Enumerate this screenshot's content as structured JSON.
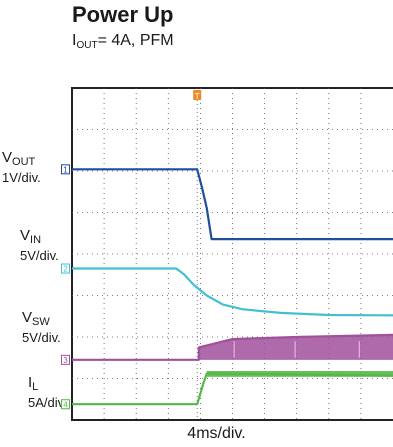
{
  "title": "Power Up",
  "subtitle": {
    "symbol": "I",
    "sub": "OUT",
    "rest": "= 4A, PFM"
  },
  "xlabel": "4ms/div.",
  "trigger_marker": "T",
  "chart_data": {
    "type": "line",
    "title": "Power Up",
    "subtitle": "IOUT= 4A, PFM",
    "xlabel": "4ms/div.",
    "grid": true,
    "x_divisions": 10,
    "y_divisions": 8,
    "trigger_at_division": 3.9,
    "series": [
      {
        "name": "VOUT",
        "sub": "OUT",
        "base": "V",
        "scale": "1V/div.",
        "channel": "1",
        "color": "#1f4e9c",
        "points": [
          [
            0,
            1.96
          ],
          [
            3.9,
            1.96
          ],
          [
            4.05,
            2.4
          ],
          [
            4.2,
            2.9
          ],
          [
            4.3,
            3.4
          ],
          [
            4.35,
            3.64
          ],
          [
            10,
            3.64
          ]
        ]
      },
      {
        "name": "VIN",
        "sub": "IN",
        "base": "V",
        "scale": "5V/div.",
        "channel": "2",
        "color": "#3fc1d0",
        "points": [
          [
            0,
            4.35
          ],
          [
            3.25,
            4.35
          ],
          [
            3.5,
            4.5
          ],
          [
            3.8,
            4.75
          ],
          [
            4.2,
            5.0
          ],
          [
            4.7,
            5.22
          ],
          [
            5.3,
            5.33
          ],
          [
            6.5,
            5.42
          ],
          [
            8,
            5.47
          ],
          [
            10,
            5.48
          ]
        ]
      },
      {
        "name": "VSW",
        "sub": "SW",
        "base": "V",
        "scale": "5V/div.",
        "channel": "3",
        "color": "#a0509c",
        "points": [
          [
            0,
            6.55
          ],
          [
            3.95,
            6.55
          ],
          [
            3.95,
            6.25
          ],
          [
            5,
            6.05
          ],
          [
            7,
            6.0
          ],
          [
            10,
            5.95
          ]
        ]
      },
      {
        "name": "IL",
        "sub": "L",
        "base": "I",
        "scale": "5A/div.",
        "channel": "4",
        "color": "#55b848",
        "points": [
          [
            0,
            7.62
          ],
          [
            3.9,
            7.62
          ],
          [
            4.1,
            7.1
          ],
          [
            4.2,
            6.88
          ],
          [
            10,
            6.93
          ]
        ]
      }
    ]
  }
}
